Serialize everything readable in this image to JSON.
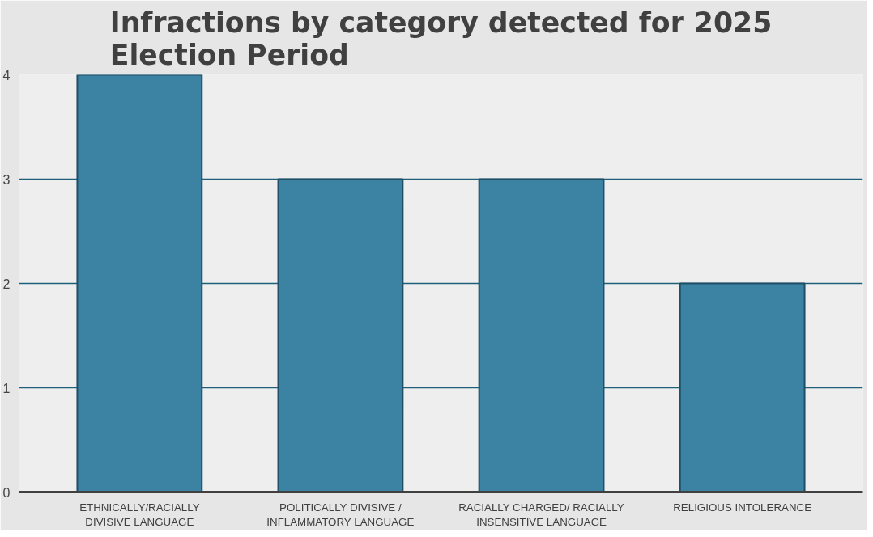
{
  "chart_data": {
    "type": "bar",
    "title": "Infractions by category detected for 2025 Election Period",
    "categories": [
      "ETHNICALLY/RACIALLY DIVISIVE LANGUAGE",
      "POLITICALLY DIVISIVE / INFLAMMATORY LANGUAGE",
      "RACIALLY CHARGED/ RACIALLY INSENSITIVE LANGUAGE",
      "RELIGIOUS INTOLERANCE"
    ],
    "values": [
      4,
      3,
      3,
      2
    ],
    "color": "#3b82a3",
    "ylim": [
      0,
      4
    ],
    "yticks": [
      0,
      1,
      2,
      3,
      4
    ],
    "grid": "y"
  }
}
